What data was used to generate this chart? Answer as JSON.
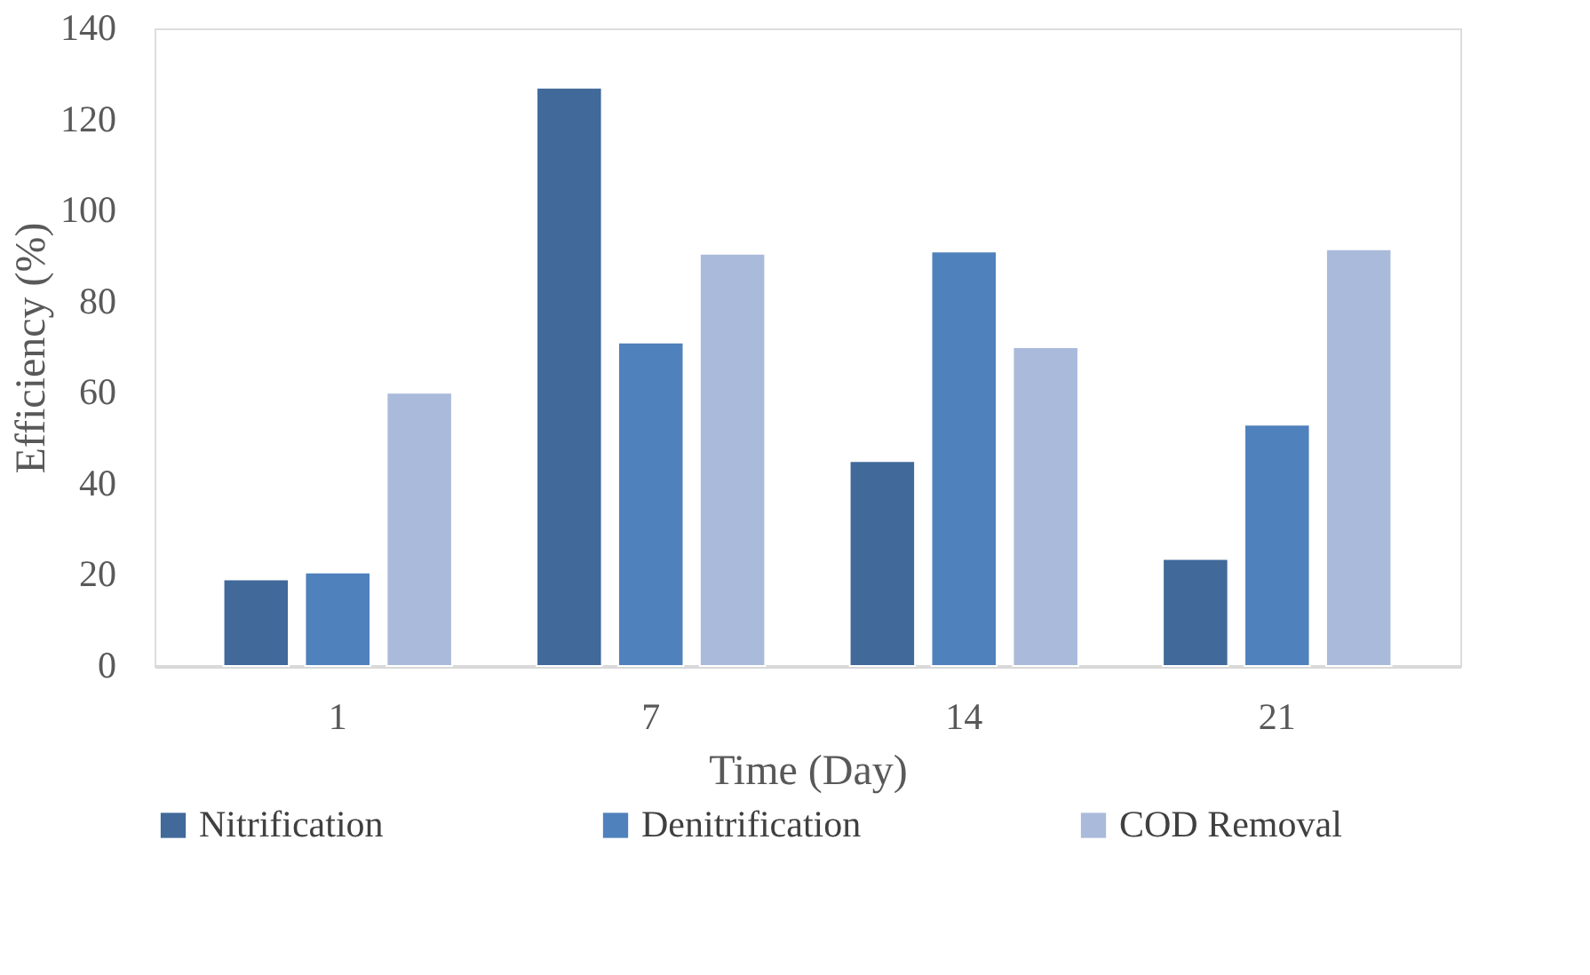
{
  "chart_data": {
    "type": "bar",
    "xlabel": "Time (Day)",
    "ylabel": "Efficiency (%)",
    "categories": [
      "1",
      "7",
      "14",
      "21"
    ],
    "series": [
      {
        "name": "Nitrification",
        "color": "#41699a",
        "values": [
          19,
          127,
          45,
          23.5
        ]
      },
      {
        "name": "Denitrification",
        "color": "#4f81bd",
        "values": [
          20.5,
          71,
          91,
          53
        ]
      },
      {
        "name": "COD Removal",
        "color": "#aabada",
        "values": [
          60,
          90.5,
          70,
          91.5
        ]
      }
    ],
    "ylim": [
      0,
      140
    ],
    "yticks": [
      0,
      20,
      40,
      60,
      80,
      100,
      120,
      140
    ],
    "grid": false,
    "legend": "bottom"
  }
}
